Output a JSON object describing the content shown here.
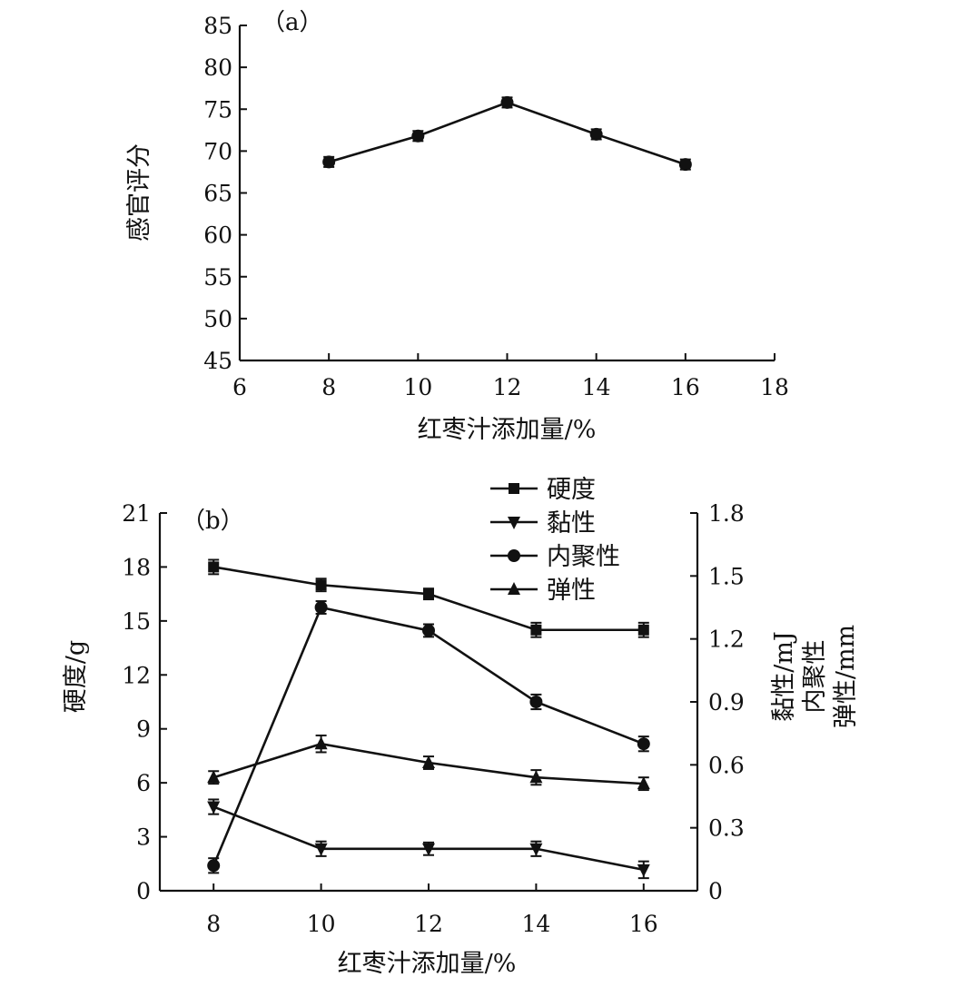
{
  "chart_data": [
    {
      "type": "line",
      "panel_label": "（a）",
      "xlabel": "红枣汁添加量/%",
      "ylabel": "感官评分",
      "xlim": [
        6,
        18
      ],
      "ylim": [
        45,
        85
      ],
      "xticks": [
        6,
        8,
        10,
        12,
        14,
        16,
        18
      ],
      "yticks": [
        45,
        50,
        55,
        60,
        65,
        70,
        75,
        80,
        85
      ],
      "grid": false,
      "x": [
        8,
        10,
        12,
        14,
        16
      ],
      "series": [
        {
          "values": [
            68.7,
            71.8,
            75.8,
            72.0,
            68.4
          ],
          "errors": [
            0.6,
            0.6,
            0.6,
            0.6,
            0.6
          ],
          "marker": "circle"
        }
      ]
    },
    {
      "type": "line",
      "panel_label": "（b）",
      "xlabel": "红枣汁添加量/%",
      "ylabel": "硬度/g",
      "y2label": [
        "黏性/mJ",
        "内聚性",
        "弹性/mm"
      ],
      "categories": [
        8,
        10,
        12,
        14,
        16
      ],
      "ylim": [
        0,
        21
      ],
      "yticks": [
        0,
        3,
        6,
        9,
        12,
        15,
        18,
        21
      ],
      "y2lim": [
        0,
        1.8
      ],
      "y2ticks": [
        "0",
        "0.3",
        "0.6",
        "0.9",
        "1.2",
        "1.5",
        "1.8"
      ],
      "grid": false,
      "legend_position": "top-right",
      "series": [
        {
          "name": "硬度",
          "axis": "left",
          "marker": "square",
          "values": [
            18.0,
            17.0,
            16.5,
            14.5,
            14.5
          ],
          "errors": [
            0.4,
            0.35,
            0.3,
            0.4,
            0.4
          ]
        },
        {
          "name": "黏性",
          "axis": "right",
          "marker": "triangle-down",
          "values": [
            0.4,
            0.2,
            0.2,
            0.2,
            0.1
          ],
          "errors": [
            0.035,
            0.035,
            0.03,
            0.035,
            0.04
          ]
        },
        {
          "name": "内聚性",
          "axis": "right",
          "marker": "circle",
          "values": [
            0.12,
            1.35,
            1.24,
            0.9,
            0.7
          ],
          "errors": [
            0.035,
            0.03,
            0.03,
            0.035,
            0.035
          ]
        },
        {
          "name": "弹性",
          "axis": "right",
          "marker": "triangle-up",
          "values": [
            0.54,
            0.7,
            0.61,
            0.54,
            0.51
          ],
          "errors": [
            0.03,
            0.04,
            0.03,
            0.035,
            0.03
          ]
        }
      ]
    }
  ]
}
